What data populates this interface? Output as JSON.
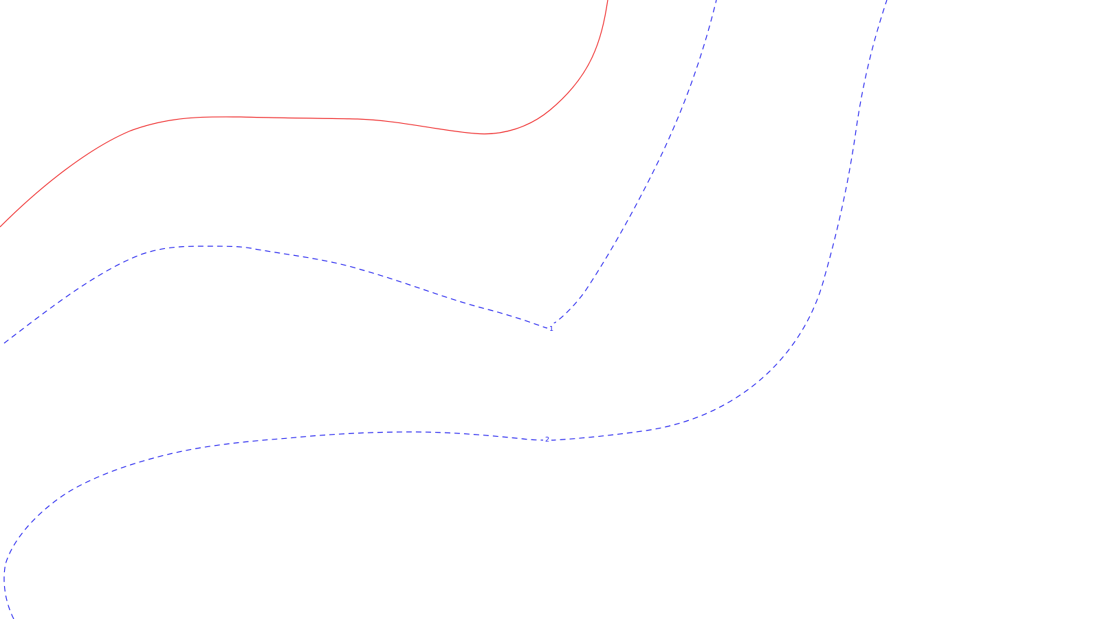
{
  "colors": {
    "background": "#ffffff",
    "reference_line": "#ee2222",
    "contour_line": "#1a1aee"
  },
  "reference_line": {
    "style": "solid"
  },
  "contours": [
    {
      "label": "1",
      "style": "dashed"
    },
    {
      "label": "2",
      "style": "dashed"
    }
  ]
}
